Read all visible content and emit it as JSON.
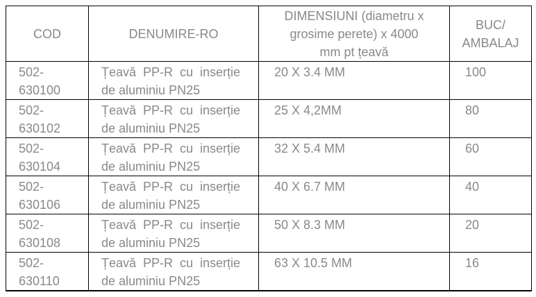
{
  "colors": {
    "text_gray": "#898989",
    "border_black": "#000000",
    "background": "#ffffff"
  },
  "table": {
    "columns": [
      {
        "id": "cod",
        "label": "COD"
      },
      {
        "id": "denumire",
        "label": "DENUMIRE-RO"
      },
      {
        "id": "dimensiuni",
        "label": "DIMENSIUNI (diametru x grosime perete) x 4000 mm pt țeavă"
      },
      {
        "id": "buc",
        "label": "BUC/ AMBALAJ"
      }
    ],
    "rows": [
      {
        "cod": "502-630100",
        "denumire": "Țeavă PP-R cu inserție de aluminiu PN25",
        "dimensiuni": "20 X 3.4 MM",
        "buc": "100"
      },
      {
        "cod": "502-630102",
        "denumire": "Țeavă PP-R cu inserție de aluminiu PN25",
        "dimensiuni": "25 X 4,2MM",
        "buc": "80"
      },
      {
        "cod": "502-630104",
        "denumire": "Țeavă PP-R cu inserție de aluminiu PN25",
        "dimensiuni": "32 X 5.4 MM",
        "buc": "60"
      },
      {
        "cod": "502-630106",
        "denumire": "Țeavă PP-R cu inserție de aluminiu PN25",
        "dimensiuni": "40 X 6.7 MM",
        "buc": "40"
      },
      {
        "cod": "502-630108",
        "denumire": "Țeavă PP-R cu inserție de aluminiu PN25",
        "dimensiuni": "50 X 8.3 MM",
        "buc": "20"
      },
      {
        "cod": "502-630110",
        "denumire": "Țeavă PP-R cu inserție de aluminiu PN25",
        "dimensiuni": "63 X 10.5 MM",
        "buc": "16"
      }
    ]
  }
}
